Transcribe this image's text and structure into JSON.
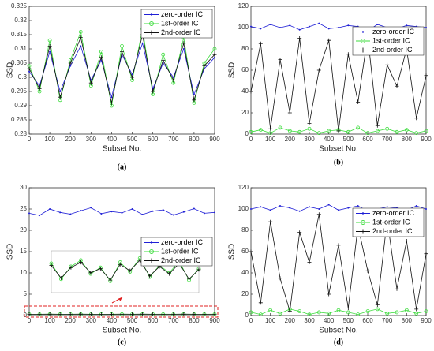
{
  "chart_data": [
    {
      "type": "line",
      "caption": "(a)",
      "xlabel": "Subset No.",
      "ylabel": "SSD",
      "legend": "upper right",
      "x": [
        0,
        50,
        100,
        150,
        200,
        250,
        300,
        350,
        400,
        450,
        500,
        550,
        600,
        650,
        700,
        750,
        800,
        850,
        900
      ],
      "xlim": [
        0,
        900
      ],
      "xticks": [
        0,
        100,
        200,
        300,
        400,
        500,
        600,
        700,
        800,
        900
      ],
      "ylim": [
        0.28,
        0.325
      ],
      "yticks": [
        0.28,
        0.285,
        0.29,
        0.295,
        0.3,
        0.305,
        0.31,
        0.315,
        0.32,
        0.325
      ],
      "series": [
        {
          "name": "zero-order IC",
          "color": "#1f1fd6",
          "marker": "dot",
          "values": [
            0.302,
            0.297,
            0.309,
            0.295,
            0.304,
            0.311,
            0.299,
            0.306,
            0.293,
            0.308,
            0.301,
            0.312,
            0.296,
            0.305,
            0.3,
            0.31,
            0.294,
            0.303,
            0.307
          ]
        },
        {
          "name": "1st-order IC",
          "color": "#3ddc3d",
          "marker": "circle",
          "values": [
            0.304,
            0.295,
            0.313,
            0.292,
            0.306,
            0.316,
            0.297,
            0.309,
            0.29,
            0.311,
            0.299,
            0.317,
            0.294,
            0.308,
            0.298,
            0.314,
            0.291,
            0.305,
            0.31
          ]
        },
        {
          "name": "2nd-order IC",
          "color": "#111111",
          "marker": "plus",
          "values": [
            0.303,
            0.296,
            0.311,
            0.293,
            0.305,
            0.314,
            0.298,
            0.307,
            0.291,
            0.309,
            0.3,
            0.315,
            0.295,
            0.306,
            0.299,
            0.312,
            0.292,
            0.304,
            0.308
          ]
        }
      ]
    },
    {
      "type": "line",
      "caption": "(b)",
      "xlabel": "Subset No.",
      "ylabel": "SSD",
      "legend": "upper-center right",
      "x": [
        0,
        50,
        100,
        150,
        200,
        250,
        300,
        350,
        400,
        450,
        500,
        550,
        600,
        650,
        700,
        750,
        800,
        850,
        900
      ],
      "xlim": [
        0,
        900
      ],
      "xticks": [
        0,
        100,
        200,
        300,
        400,
        500,
        600,
        700,
        800,
        900
      ],
      "ylim": [
        0,
        120
      ],
      "yticks": [
        0,
        20,
        40,
        60,
        80,
        100,
        120
      ],
      "series": [
        {
          "name": "zero-order IC",
          "color": "#1f1fd6",
          "marker": "dot",
          "values": [
            101,
            99,
            103,
            100,
            102,
            98,
            101,
            104,
            99,
            100,
            102,
            101,
            97,
            103,
            100,
            99,
            102,
            101,
            100
          ]
        },
        {
          "name": "1st-order IC",
          "color": "#3ddc3d",
          "marker": "circle",
          "values": [
            2,
            4,
            1,
            6,
            3,
            2,
            5,
            1,
            3,
            4,
            2,
            6,
            1,
            3,
            5,
            2,
            4,
            1,
            3
          ]
        },
        {
          "name": "2nd-order IC",
          "color": "#111111",
          "marker": "plus",
          "values": [
            40,
            85,
            5,
            70,
            20,
            90,
            10,
            60,
            88,
            3,
            75,
            30,
            92,
            8,
            65,
            45,
            80,
            15,
            55
          ]
        }
      ]
    },
    {
      "type": "line",
      "caption": "(c)",
      "xlabel": "Subset No.",
      "ylabel": "SSD",
      "legend": "center right",
      "x": [
        0,
        50,
        100,
        150,
        200,
        250,
        300,
        350,
        400,
        450,
        500,
        550,
        600,
        650,
        700,
        750,
        800,
        850,
        900
      ],
      "xlim": [
        0,
        900
      ],
      "xticks": [
        0,
        100,
        200,
        300,
        400,
        500,
        600,
        700,
        800,
        900
      ],
      "ylim": [
        0,
        30
      ],
      "yticks": [
        0,
        5,
        10,
        15,
        20,
        25,
        30
      ],
      "inset": {
        "xlim": [
          100,
          850
        ],
        "ylim": [
          0.28,
          0.32
        ]
      },
      "series": [
        {
          "name": "zero-order IC",
          "color": "#1f1fd6",
          "marker": "dot",
          "values": [
            24,
            23.5,
            25,
            24.2,
            23.8,
            24.6,
            25.3,
            23.9,
            24.4,
            24.1,
            25,
            23.7,
            24.5,
            24.8,
            23.6,
            24.3,
            25.1,
            24,
            24.2
          ]
        },
        {
          "name": "1st-order IC",
          "color": "#3ddc3d",
          "marker": "circle",
          "values": [
            0.301,
            0.296,
            0.308,
            0.293,
            0.305,
            0.311,
            0.298,
            0.304,
            0.291,
            0.309,
            0.3,
            0.313,
            0.295,
            0.306,
            0.299,
            0.31,
            0.292,
            0.303,
            0.307
          ]
        },
        {
          "name": "2nd-order IC",
          "color": "#111111",
          "marker": "plus",
          "values": [
            0.3,
            0.297,
            0.306,
            0.294,
            0.304,
            0.309,
            0.299,
            0.303,
            0.292,
            0.307,
            0.301,
            0.311,
            0.296,
            0.305,
            0.298,
            0.308,
            0.293,
            0.302,
            0.305
          ]
        }
      ]
    },
    {
      "type": "line",
      "caption": "(d)",
      "xlabel": "Subset No.",
      "ylabel": "SSD",
      "legend": "upper-center right",
      "x": [
        0,
        50,
        100,
        150,
        200,
        250,
        300,
        350,
        400,
        450,
        500,
        550,
        600,
        650,
        700,
        750,
        800,
        850,
        900
      ],
      "xlim": [
        0,
        900
      ],
      "xticks": [
        0,
        100,
        200,
        300,
        400,
        500,
        600,
        700,
        800,
        900
      ],
      "ylim": [
        0,
        120
      ],
      "yticks": [
        0,
        20,
        40,
        60,
        80,
        100,
        120
      ],
      "series": [
        {
          "name": "zero-order IC",
          "color": "#1f1fd6",
          "marker": "dot",
          "values": [
            100,
            102,
            99,
            103,
            101,
            98,
            102,
            100,
            104,
            99,
            101,
            103,
            98,
            100,
            102,
            101,
            99,
            103,
            100
          ]
        },
        {
          "name": "1st-order IC",
          "color": "#3ddc3d",
          "marker": "circle",
          "values": [
            3,
            1,
            5,
            2,
            6,
            4,
            1,
            3,
            2,
            5,
            3,
            1,
            4,
            6,
            2,
            3,
            5,
            2,
            4
          ]
        },
        {
          "name": "2nd-order IC",
          "color": "#111111",
          "marker": "plus",
          "values": [
            60,
            12,
            88,
            35,
            4,
            78,
            50,
            95,
            20,
            66,
            7,
            84,
            42,
            10,
            90,
            25,
            70,
            6,
            58
          ]
        }
      ]
    }
  ]
}
